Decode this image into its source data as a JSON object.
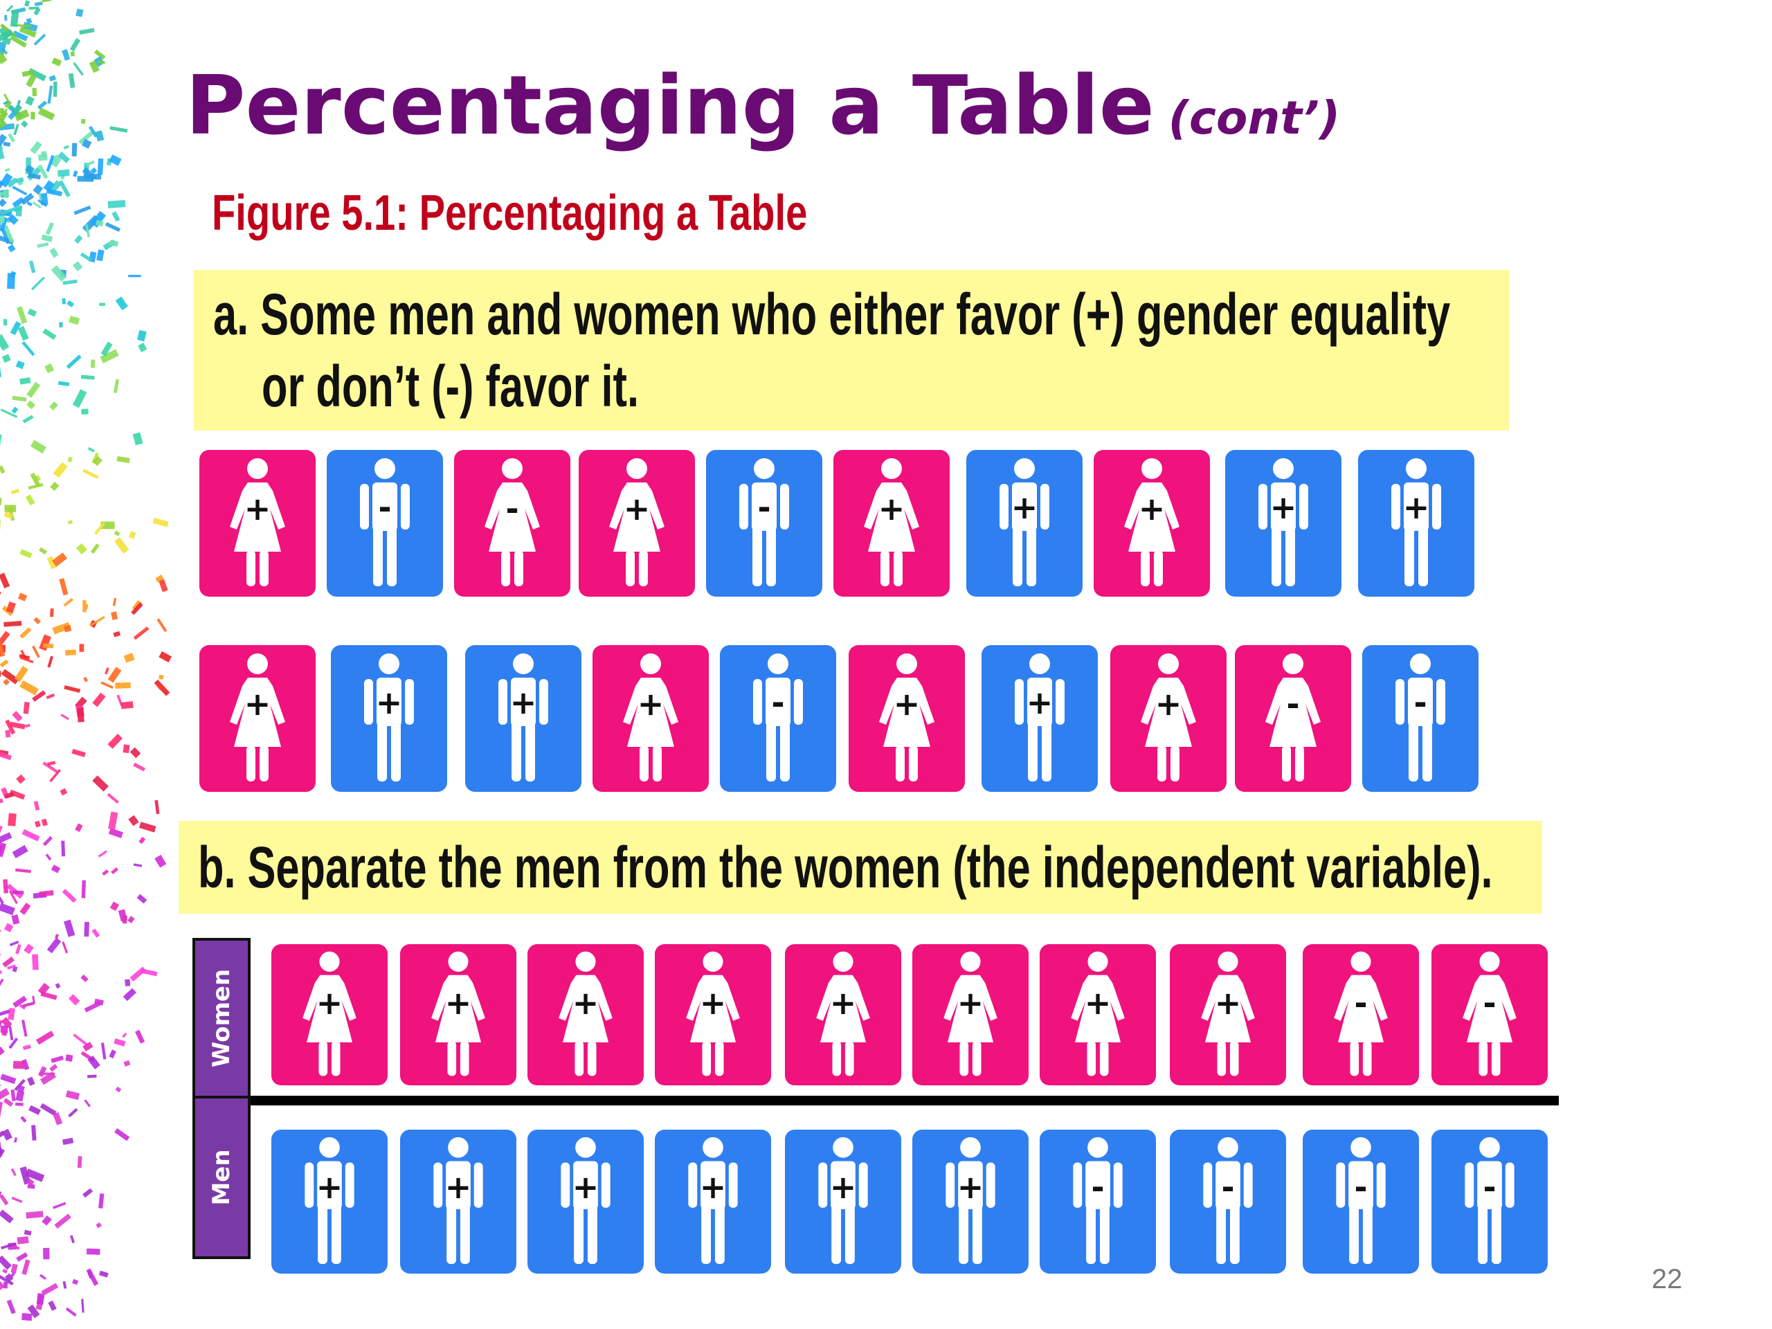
{
  "slide": {
    "title": "Percentaging a Table",
    "title_suffix": "(cont’)",
    "figure_caption": "Figure  5.1:  Percentaging a Table",
    "page_number": "22"
  },
  "colors": {
    "title": "#6a0b73",
    "caption": "#c0001a",
    "panel_bg": "#fffa9a",
    "woman_card": "#f0127d",
    "man_card": "#2f7ff0",
    "row_label_bg": "#7a3aa6"
  },
  "panel_a": {
    "line1": "a. Some men and women who either favor (+) gender equality",
    "line2": "or don’t (-) favor it.",
    "row1": [
      {
        "gender": "woman",
        "sign": "+"
      },
      {
        "gender": "man",
        "sign": "-"
      },
      {
        "gender": "woman",
        "sign": "-"
      },
      {
        "gender": "woman",
        "sign": "+"
      },
      {
        "gender": "man",
        "sign": "-"
      },
      {
        "gender": "woman",
        "sign": "+"
      },
      {
        "gender": "man",
        "sign": "+"
      },
      {
        "gender": "woman",
        "sign": "+"
      },
      {
        "gender": "man",
        "sign": "+"
      },
      {
        "gender": "man",
        "sign": "+"
      }
    ],
    "row2": [
      {
        "gender": "woman",
        "sign": "+"
      },
      {
        "gender": "man",
        "sign": "+"
      },
      {
        "gender": "man",
        "sign": "+"
      },
      {
        "gender": "woman",
        "sign": "+"
      },
      {
        "gender": "man",
        "sign": "-"
      },
      {
        "gender": "woman",
        "sign": "+"
      },
      {
        "gender": "man",
        "sign": "+"
      },
      {
        "gender": "woman",
        "sign": "+"
      },
      {
        "gender": "woman",
        "sign": "-"
      },
      {
        "gender": "man",
        "sign": "-"
      }
    ]
  },
  "panel_b": {
    "text": "b. Separate the men from the women (the independent variable).",
    "women_label": "Women",
    "men_label": "Men",
    "women": [
      "+",
      "+",
      "+",
      "+",
      "+",
      "+",
      "+",
      "+",
      "-",
      "-"
    ],
    "men": [
      "+",
      "+",
      "+",
      "+",
      "+",
      "+",
      "-",
      "-",
      "-",
      "-"
    ]
  }
}
